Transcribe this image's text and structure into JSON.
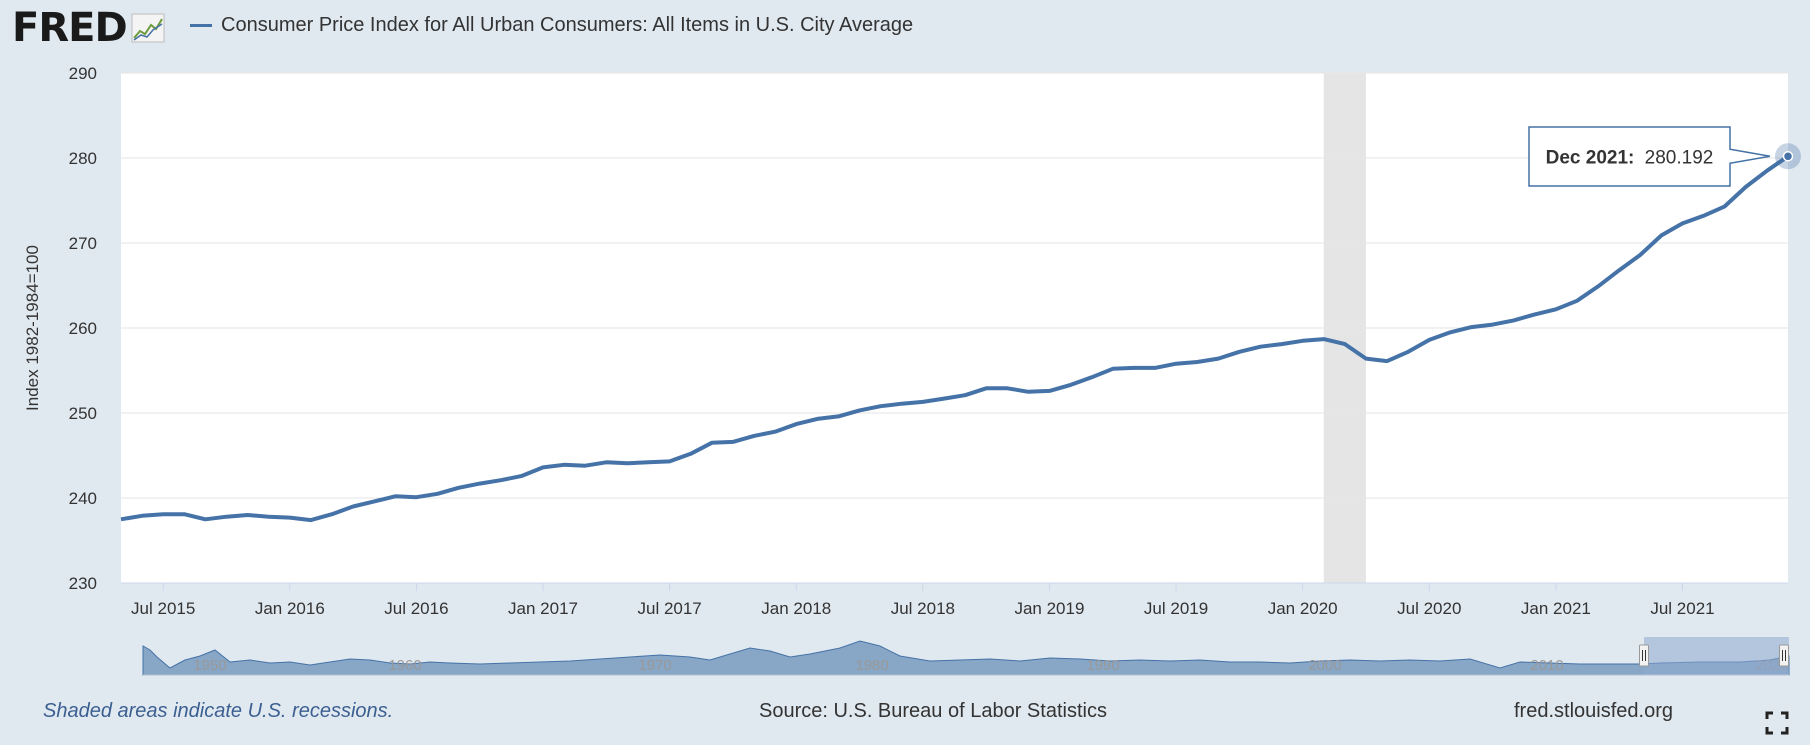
{
  "header": {
    "logo_text": "FRED",
    "logo_icon": "chart-line-icon",
    "series_label": "Consumer Price Index for All Urban Consumers: All Items in U.S. City Average"
  },
  "colors": {
    "series": "#4572a7",
    "background": "#e1e9f0",
    "plot": "#ffffff",
    "recession": "#e5e5e5",
    "tooltip_border": "#4572a7"
  },
  "chart_data": {
    "type": "line",
    "title": "",
    "xlabel": "",
    "ylabel": "Index 1982-1984=100",
    "ylim": [
      230,
      290
    ],
    "yticks": [
      230,
      240,
      250,
      260,
      270,
      280,
      290
    ],
    "grid": true,
    "xrange": [
      "2015-05",
      "2021-12"
    ],
    "xticks": [
      {
        "date": "2015-07",
        "label": "Jul 2015"
      },
      {
        "date": "2016-01",
        "label": "Jan 2016"
      },
      {
        "date": "2016-07",
        "label": "Jul 2016"
      },
      {
        "date": "2017-01",
        "label": "Jan 2017"
      },
      {
        "date": "2017-07",
        "label": "Jul 2017"
      },
      {
        "date": "2018-01",
        "label": "Jan 2018"
      },
      {
        "date": "2018-07",
        "label": "Jul 2018"
      },
      {
        "date": "2019-01",
        "label": "Jan 2019"
      },
      {
        "date": "2019-07",
        "label": "Jul 2019"
      },
      {
        "date": "2020-01",
        "label": "Jan 2020"
      },
      {
        "date": "2020-07",
        "label": "Jul 2020"
      },
      {
        "date": "2021-01",
        "label": "Jan 2021"
      },
      {
        "date": "2021-07",
        "label": "Jul 2021"
      }
    ],
    "recessions": [
      {
        "start": "2020-02",
        "end": "2020-04"
      }
    ],
    "series": [
      {
        "x": [
          "2015-05",
          "2015-06",
          "2015-07",
          "2015-08",
          "2015-09",
          "2015-10",
          "2015-11",
          "2015-12",
          "2016-01",
          "2016-02",
          "2016-03",
          "2016-04",
          "2016-05",
          "2016-06",
          "2016-07",
          "2016-08",
          "2016-09",
          "2016-10",
          "2016-11",
          "2016-12",
          "2017-01",
          "2017-02",
          "2017-03",
          "2017-04",
          "2017-05",
          "2017-06",
          "2017-07",
          "2017-08",
          "2017-09",
          "2017-10",
          "2017-11",
          "2017-12",
          "2018-01",
          "2018-02",
          "2018-03",
          "2018-04",
          "2018-05",
          "2018-06",
          "2018-07",
          "2018-08",
          "2018-09",
          "2018-10",
          "2018-11",
          "2018-12",
          "2019-01",
          "2019-02",
          "2019-03",
          "2019-04",
          "2019-05",
          "2019-06",
          "2019-07",
          "2019-08",
          "2019-09",
          "2019-10",
          "2019-11",
          "2019-12",
          "2020-01",
          "2020-02",
          "2020-03",
          "2020-04",
          "2020-05",
          "2020-06",
          "2020-07",
          "2020-08",
          "2020-09",
          "2020-10",
          "2020-11",
          "2020-12",
          "2021-01",
          "2021-02",
          "2021-03",
          "2021-04",
          "2021-05",
          "2021-06",
          "2021-07",
          "2021-08",
          "2021-09",
          "2021-10",
          "2021-11",
          "2021-12"
        ],
        "y": [
          237.5,
          237.9,
          238.1,
          238.1,
          237.5,
          237.8,
          238.0,
          237.8,
          237.7,
          237.4,
          238.1,
          239.0,
          239.6,
          240.2,
          240.1,
          240.5,
          241.2,
          241.7,
          242.1,
          242.6,
          243.6,
          243.9,
          243.8,
          244.2,
          244.1,
          244.2,
          244.3,
          245.2,
          246.5,
          246.6,
          247.3,
          247.8,
          248.7,
          249.3,
          249.6,
          250.3,
          250.8,
          251.1,
          251.3,
          251.7,
          252.1,
          252.9,
          252.9,
          252.5,
          252.6,
          253.3,
          254.2,
          255.2,
          255.3,
          255.3,
          255.8,
          256.0,
          256.4,
          257.2,
          257.8,
          258.1,
          258.5,
          258.7,
          258.1,
          256.4,
          256.1,
          257.2,
          258.6,
          259.5,
          260.1,
          260.4,
          260.9,
          261.6,
          262.2,
          263.2,
          264.9,
          266.8,
          268.6,
          270.9,
          272.3,
          273.2,
          274.3,
          276.6,
          278.5,
          280.2
        ]
      }
    ],
    "tooltip": {
      "label": "Dec 2021:",
      "value": "280.192"
    },
    "navigator": {
      "labels": [
        "1950",
        "1960",
        "1970",
        "1980",
        "1990",
        "2000",
        "2010",
        "2020"
      ],
      "selection": [
        "2015-05",
        "2021-12"
      ]
    }
  },
  "footer": {
    "note": "Shaded areas indicate U.S. recessions.",
    "source": "Source: U.S. Bureau of Labor Statistics",
    "site": "fred.stlouisfed.org",
    "fullscreen_icon": "fullscreen-icon"
  }
}
